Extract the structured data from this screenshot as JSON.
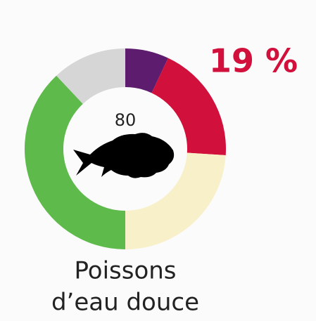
{
  "chart_data": {
    "type": "pie",
    "donut": true,
    "center_label": "80",
    "label": [
      "Poissons",
      "d’eau douce"
    ],
    "values": [
      7,
      19,
      24,
      38,
      12
    ],
    "value_labels": [
      null,
      "19 %",
      null,
      null,
      null
    ],
    "colors": [
      "#5e1c6e",
      "#d1103b",
      "#f8f0c9",
      "#5fba4c",
      "#d6d6d6"
    ]
  }
}
